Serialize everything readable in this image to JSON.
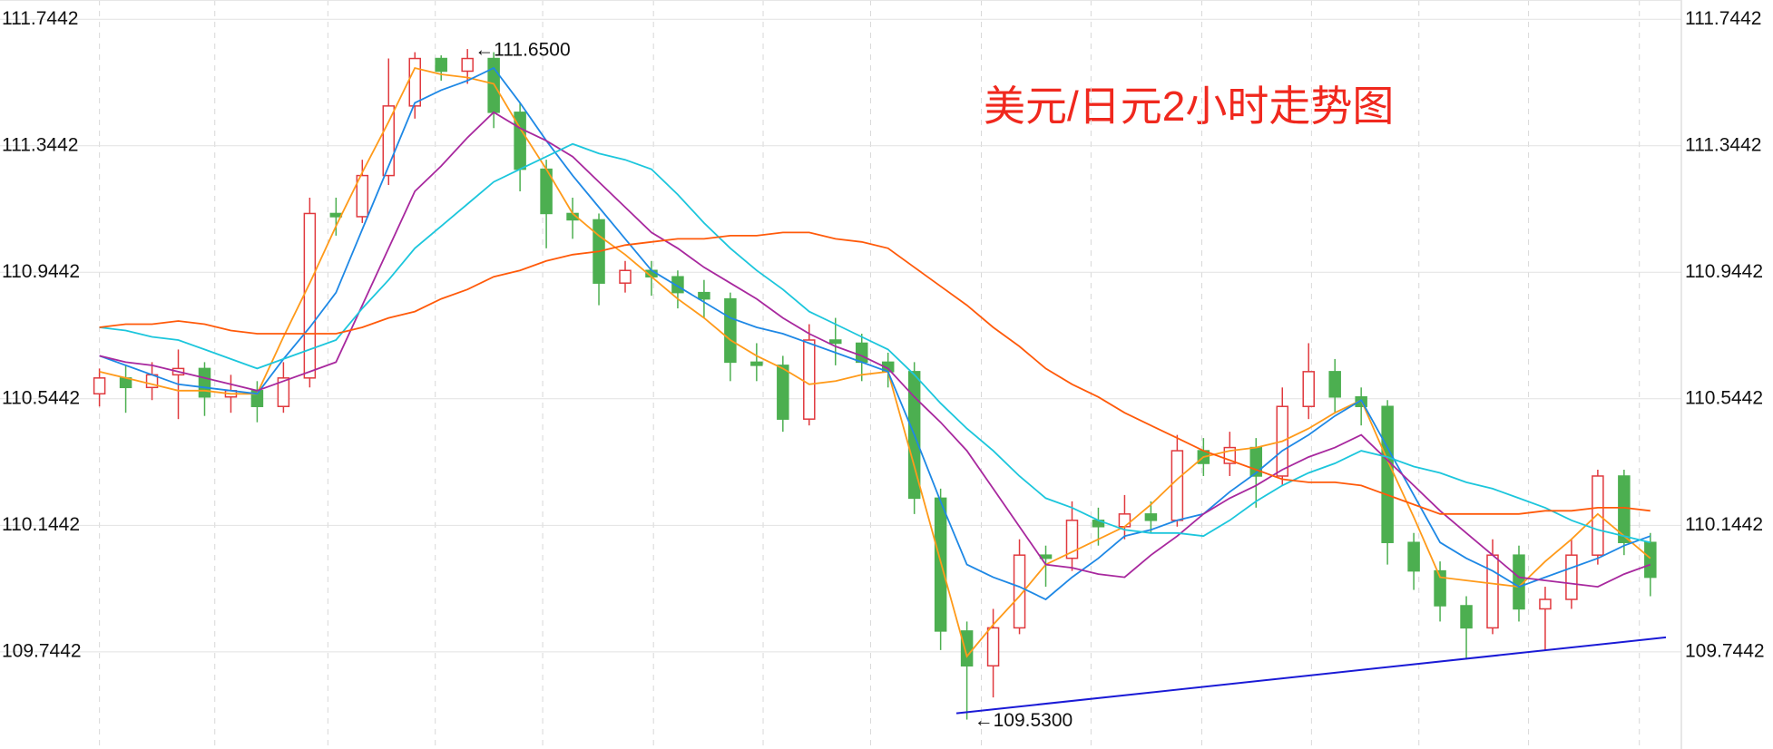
{
  "chart_data": {
    "type": "candlestick",
    "title": "美元/日元2小时走势图",
    "ylim": [
      109.437,
      111.805
    ],
    "yticks": [
      109.7442,
      110.1442,
      110.5442,
      110.9442,
      111.3442,
      111.7442
    ],
    "grid": true,
    "up_color": "#e0393e",
    "down_color": "#4caf50",
    "open": [
      110.56,
      110.61,
      110.58,
      110.62,
      110.64,
      110.55,
      110.57,
      110.52,
      110.61,
      111.13,
      111.12,
      111.25,
      111.47,
      111.62,
      111.58,
      111.62,
      111.45,
      111.27,
      111.13,
      111.11,
      110.91,
      110.95,
      110.93,
      110.88,
      110.86,
      110.66,
      110.65,
      110.48,
      110.73,
      110.72,
      110.66,
      110.63,
      110.23,
      109.81,
      109.7,
      109.82,
      110.05,
      110.04,
      110.16,
      110.14,
      110.18,
      110.16,
      110.38,
      110.34,
      110.39,
      110.3,
      110.52,
      110.63,
      110.55,
      110.52,
      110.09,
      110.0,
      109.89,
      109.82,
      110.05,
      109.88,
      109.91,
      110.05,
      110.3,
      110.09
    ],
    "high": [
      110.64,
      110.65,
      110.66,
      110.7,
      110.66,
      110.62,
      110.6,
      110.66,
      111.18,
      111.18,
      111.3,
      111.62,
      111.64,
      111.63,
      111.65,
      111.64,
      111.48,
      111.3,
      111.18,
      111.13,
      110.98,
      110.98,
      110.95,
      110.92,
      110.88,
      110.72,
      110.68,
      110.78,
      110.8,
      110.75,
      110.69,
      110.66,
      110.26,
      109.84,
      109.88,
      110.1,
      110.08,
      110.22,
      110.2,
      110.24,
      110.22,
      110.43,
      110.42,
      110.44,
      110.42,
      110.58,
      110.72,
      110.67,
      110.58,
      110.54,
      110.12,
      110.03,
      109.92,
      110.1,
      110.08,
      109.95,
      110.1,
      110.32,
      110.32,
      110.12
    ],
    "low": [
      110.52,
      110.5,
      110.54,
      110.48,
      110.49,
      110.5,
      110.47,
      110.5,
      110.58,
      111.06,
      111.1,
      111.22,
      111.43,
      111.55,
      111.54,
      111.4,
      111.2,
      111.02,
      111.05,
      110.84,
      110.88,
      110.87,
      110.83,
      110.8,
      110.6,
      110.6,
      110.44,
      110.46,
      110.65,
      110.6,
      110.58,
      110.18,
      109.75,
      109.53,
      109.6,
      109.8,
      109.95,
      110.0,
      110.08,
      110.1,
      110.12,
      110.14,
      110.3,
      110.3,
      110.2,
      110.27,
      110.48,
      110.5,
      110.46,
      110.02,
      109.94,
      109.84,
      109.72,
      109.8,
      109.84,
      109.75,
      109.88,
      110.02,
      110.05,
      109.92
    ],
    "close": [
      110.61,
      110.58,
      110.62,
      110.64,
      110.55,
      110.57,
      110.52,
      110.61,
      111.13,
      111.12,
      111.25,
      111.47,
      111.62,
      111.58,
      111.62,
      111.45,
      111.27,
      111.13,
      111.11,
      110.91,
      110.95,
      110.93,
      110.88,
      110.86,
      110.66,
      110.65,
      110.48,
      110.73,
      110.72,
      110.66,
      110.63,
      110.23,
      109.81,
      109.7,
      109.82,
      110.05,
      110.04,
      110.16,
      110.14,
      110.18,
      110.16,
      110.38,
      110.34,
      110.39,
      110.3,
      110.52,
      110.63,
      110.55,
      110.52,
      110.09,
      110.0,
      109.89,
      109.82,
      110.05,
      109.88,
      109.91,
      110.05,
      110.3,
      110.09,
      109.98
    ],
    "ma_lines": [
      {
        "color": "#ff9a1a",
        "values": [
          110.63,
          110.61,
          110.59,
          110.57,
          110.57,
          110.56,
          110.56,
          110.74,
          110.91,
          111.09,
          111.26,
          111.42,
          111.59,
          111.57,
          111.56,
          111.54,
          111.4,
          111.27,
          111.13,
          111.06,
          111.0,
          110.93,
          110.86,
          110.8,
          110.73,
          110.68,
          110.64,
          110.59,
          110.6,
          110.62,
          110.63,
          110.33,
          110.03,
          109.73,
          109.83,
          109.92,
          110.02,
          110.06,
          110.1,
          110.14,
          110.21,
          110.29,
          110.36,
          110.38,
          110.39,
          110.41,
          110.45,
          110.5,
          110.54,
          110.35,
          110.17,
          109.98,
          109.97,
          109.96,
          109.95,
          110.03,
          110.1,
          110.18,
          110.11,
          110.04
        ]
      },
      {
        "color": "#1e88e5",
        "values": [
          110.68,
          110.65,
          110.62,
          110.59,
          110.58,
          110.57,
          110.56,
          110.67,
          110.77,
          110.88,
          111.08,
          111.28,
          111.48,
          111.52,
          111.55,
          111.59,
          111.48,
          111.36,
          111.25,
          111.15,
          111.05,
          110.95,
          110.9,
          110.85,
          110.8,
          110.77,
          110.75,
          110.72,
          110.69,
          110.66,
          110.63,
          110.43,
          110.22,
          110.02,
          109.98,
          109.95,
          109.91,
          109.98,
          110.04,
          110.11,
          110.13,
          110.16,
          110.18,
          110.25,
          110.31,
          110.38,
          110.43,
          110.49,
          110.54,
          110.39,
          110.24,
          110.09,
          110.04,
          110.0,
          109.95,
          109.98,
          110.01,
          110.04,
          110.08,
          110.11
        ]
      },
      {
        "color": "#a8289e",
        "values": [
          110.68,
          110.66,
          110.65,
          110.63,
          110.61,
          110.59,
          110.57,
          110.6,
          110.63,
          110.66,
          110.84,
          111.02,
          111.2,
          111.28,
          111.37,
          111.45,
          111.4,
          111.36,
          111.31,
          111.23,
          111.15,
          111.07,
          111.02,
          110.96,
          110.91,
          110.86,
          110.8,
          110.75,
          110.71,
          110.68,
          110.64,
          110.55,
          110.47,
          110.38,
          110.26,
          110.14,
          110.02,
          110.01,
          109.99,
          109.98,
          110.05,
          110.11,
          110.18,
          110.23,
          110.27,
          110.32,
          110.36,
          110.39,
          110.43,
          110.35,
          110.27,
          110.19,
          110.12,
          110.05,
          109.98,
          109.97,
          109.96,
          109.95,
          109.99,
          110.02
        ]
      },
      {
        "color": "#1cc6dc",
        "values": [
          110.77,
          110.76,
          110.74,
          110.73,
          110.7,
          110.67,
          110.64,
          110.67,
          110.7,
          110.73,
          110.83,
          110.92,
          111.02,
          111.09,
          111.16,
          111.23,
          111.27,
          111.31,
          111.35,
          111.32,
          111.3,
          111.27,
          111.19,
          111.1,
          111.02,
          110.95,
          110.89,
          110.82,
          110.78,
          110.74,
          110.7,
          110.62,
          110.53,
          110.45,
          110.38,
          110.3,
          110.23,
          110.2,
          110.16,
          110.13,
          110.12,
          110.12,
          110.11,
          110.16,
          110.22,
          110.27,
          110.31,
          110.34,
          110.38,
          110.36,
          110.33,
          110.31,
          110.28,
          110.26,
          110.23,
          110.2,
          110.16,
          110.13,
          110.11,
          110.09
        ]
      },
      {
        "color": "#ff5a0a",
        "values": [
          110.77,
          110.78,
          110.78,
          110.79,
          110.78,
          110.76,
          110.75,
          110.75,
          110.75,
          110.75,
          110.77,
          110.8,
          110.82,
          110.86,
          110.89,
          110.93,
          110.95,
          110.98,
          111.0,
          111.01,
          111.03,
          111.04,
          111.05,
          111.05,
          111.06,
          111.06,
          111.07,
          111.07,
          111.05,
          111.04,
          111.02,
          110.96,
          110.9,
          110.84,
          110.77,
          110.71,
          110.64,
          110.59,
          110.55,
          110.5,
          110.46,
          110.42,
          110.38,
          110.35,
          110.32,
          110.29,
          110.28,
          110.28,
          110.27,
          110.24,
          110.21,
          110.18,
          110.18,
          110.18,
          110.18,
          110.19,
          110.19,
          110.2,
          110.2,
          110.19
        ]
      }
    ],
    "trend_line": {
      "color": "#1a1ad6",
      "values": [
        109.55,
        109.79
      ]
    },
    "annotations": [
      {
        "label": "←111.6500",
        "value": 111.65
      },
      {
        "label": "←109.5300",
        "value": 109.53
      }
    ]
  }
}
